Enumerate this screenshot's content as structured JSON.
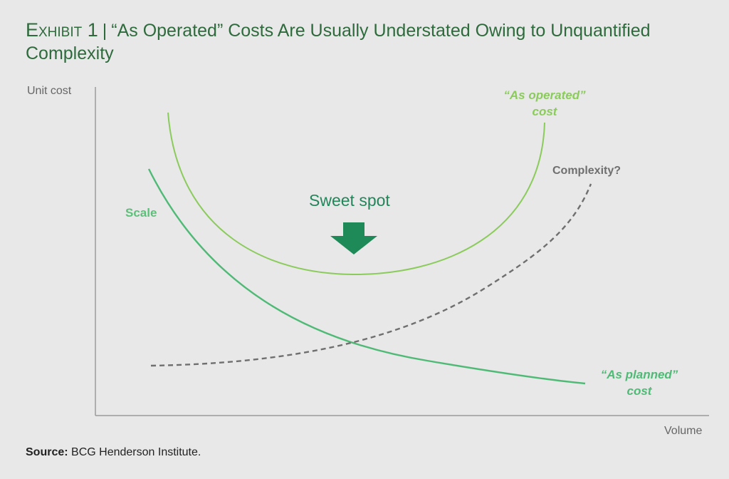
{
  "title": {
    "lead": "Exhibit 1",
    "separator": "|",
    "text": "“As Operated” Costs Are Usually Understated Owing to Unquantified Complexity"
  },
  "axes": {
    "y_label": "Unit cost",
    "x_label": "Volume"
  },
  "labels": {
    "as_operated_line1": "“As operated”",
    "as_operated_line2": "cost",
    "complexity": "Complexity?",
    "scale": "Scale",
    "sweet_spot": "Sweet spot",
    "as_planned_line1": "“As planned”",
    "as_planned_line2": "cost"
  },
  "source": {
    "prefix": "Source:",
    "text": "BCG Henderson Institute."
  },
  "colors": {
    "as_operated": "#8bcb5c",
    "scale": "#4fba76",
    "complexity": "#6f6f6f",
    "arrow": "#1e8a58",
    "title": "#2e6b3c"
  },
  "icons": {
    "sweet_spot_marker": "down-arrow-icon"
  }
}
